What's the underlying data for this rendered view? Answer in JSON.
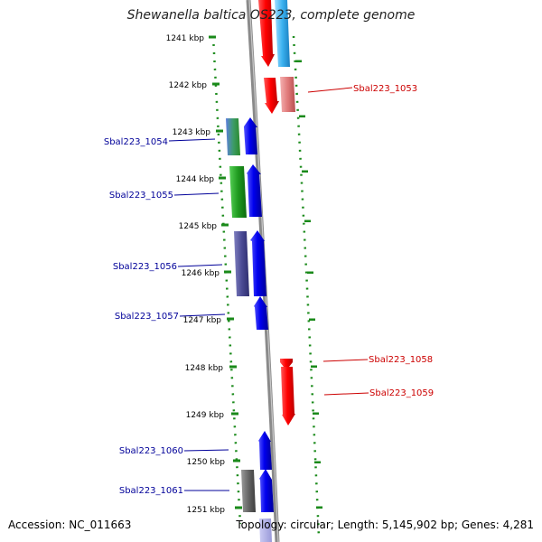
{
  "title": "Shewanella baltica OS223, complete genome",
  "accession": "Accession: NC_011663",
  "topology": "Topology: circular; Length: 5,145,902 bp; Genes: 4,281",
  "colors": {
    "forward_cds": "#0000ee",
    "reverse_cds": "#ee0000",
    "reverse_light": "#e08080",
    "green_feature": "#22aa22",
    "tick": "#1a8a1a",
    "backbone": "#888888",
    "left_label": "#000099",
    "right_label": "#cc0000"
  },
  "ticks": [
    {
      "label": "1241 kbp",
      "kbp": 1241
    },
    {
      "label": "1242 kbp",
      "kbp": 1242
    },
    {
      "label": "1243 kbp",
      "kbp": 1243
    },
    {
      "label": "1244 kbp",
      "kbp": 1244
    },
    {
      "label": "1245 kbp",
      "kbp": 1245
    },
    {
      "label": "1246 kbp",
      "kbp": 1246
    },
    {
      "label": "1247 kbp",
      "kbp": 1247
    },
    {
      "label": "1248 kbp",
      "kbp": 1248
    },
    {
      "label": "1249 kbp",
      "kbp": 1249
    },
    {
      "label": "1250 kbp",
      "kbp": 1250
    },
    {
      "label": "1251 kbp",
      "kbp": 1251
    }
  ],
  "genes": {
    "left": [
      {
        "name": "Sbal223_1054",
        "kbp": 1243.2
      },
      {
        "name": "Sbal223_1055",
        "kbp": 1244.3
      },
      {
        "name": "Sbal223_1056",
        "kbp": 1245.85
      },
      {
        "name": "Sbal223_1057",
        "kbp": 1246.85
      },
      {
        "name": "Sbal223_1060",
        "kbp": 1249.75
      },
      {
        "name": "Sbal223_1061",
        "kbp": 1250.6
      }
    ],
    "right": [
      {
        "name": "Sbal223_1053",
        "kbp": 1242.05
      },
      {
        "name": "Sbal223_1058",
        "kbp": 1247.8
      },
      {
        "name": "Sbal223_1059",
        "kbp": 1248.5
      }
    ]
  }
}
